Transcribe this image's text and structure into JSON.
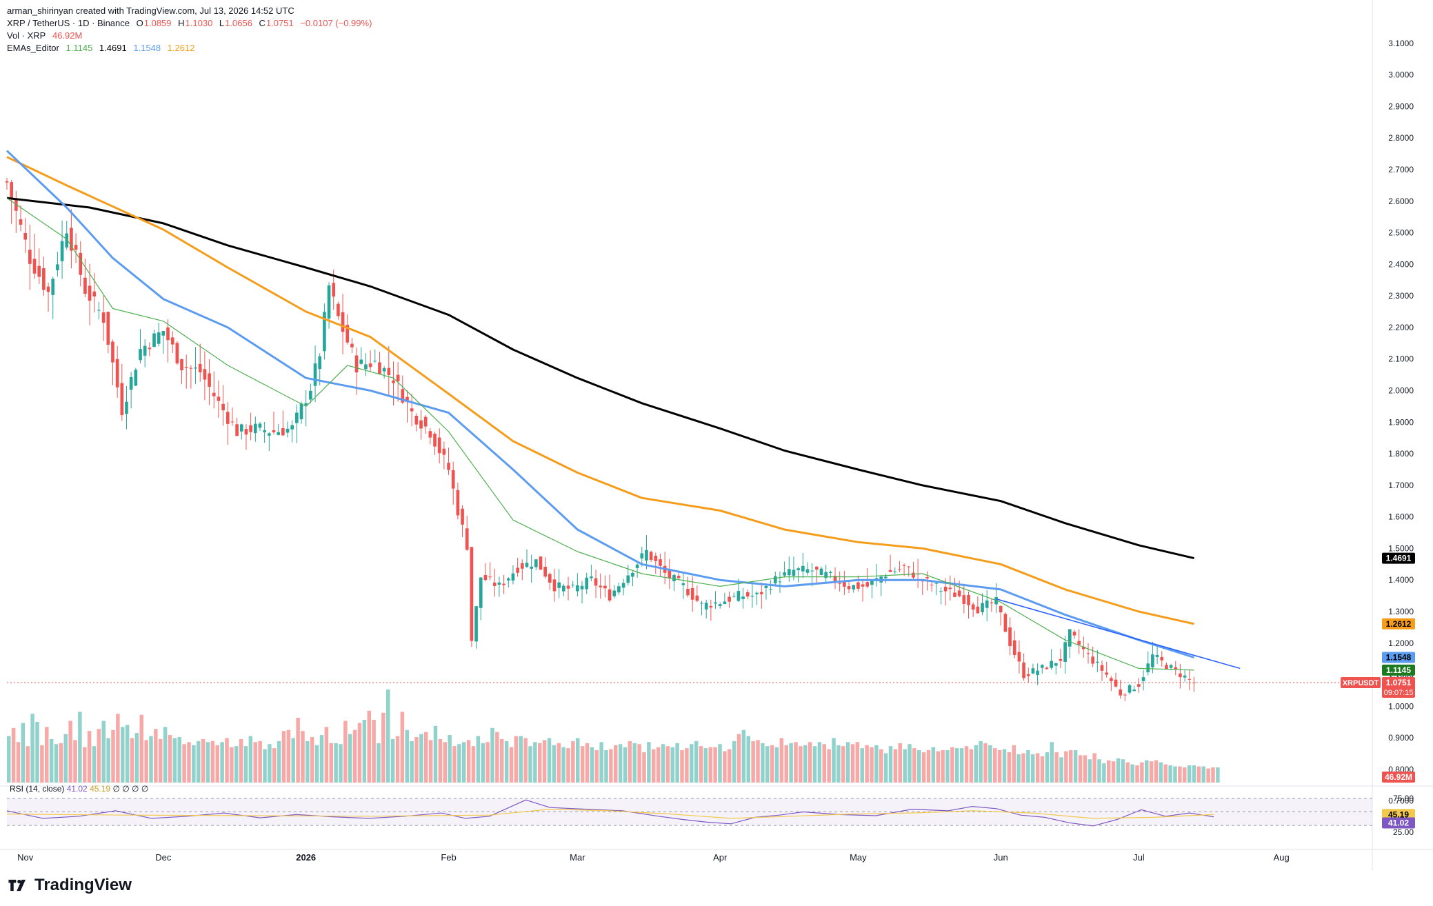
{
  "header": {
    "credit": "arman_shirinyan created with TradingView.com, Jul 13, 2026 14:52 UTC",
    "symbol_line": "XRP / TetherUS · 1D · Binance",
    "ohlc": {
      "o_label": "O",
      "o": "1.0859",
      "h_label": "H",
      "h": "1.1030",
      "l_label": "L",
      "l": "1.0656",
      "c_label": "C",
      "c": "1.0751",
      "change": "−0.0107 (−0.99%)"
    },
    "vol_label": "Vol · XRP",
    "vol_value": "46.92M",
    "ema_label": "EMAs_Editor",
    "ema_values": [
      "1.1145",
      "1.4691",
      "1.1548",
      "1.2612"
    ]
  },
  "brand": {
    "name": "TradingView"
  },
  "colors": {
    "up": "#26a69a",
    "down": "#ef5350",
    "ema20": "#4caf50",
    "ema50": "#5b9cf0",
    "ema100": "#f59c1a",
    "ema200": "#000000",
    "trendline": "#2962ff",
    "rsi": "#7e57c2",
    "rsi_ma": "#f2c94c"
  },
  "chart_data": {
    "type": "line",
    "title": "XRP / TetherUS · 1D · Binance",
    "price_axis": {
      "ticks": [
        "3.1000",
        "3.0000",
        "2.9000",
        "2.8000",
        "2.7000",
        "2.6000",
        "2.5000",
        "2.4000",
        "2.3000",
        "2.2000",
        "2.1000",
        "2.0000",
        "1.9000",
        "1.8000",
        "1.7000",
        "1.6000",
        "1.5000",
        "1.4000",
        "1.3000",
        "1.2000",
        "1.1000",
        "1.0000",
        "0.9000",
        "0.8000",
        "0.7000"
      ],
      "range": [
        0.66,
        3.15
      ]
    },
    "time_axis": {
      "ticks": [
        "Nov",
        "Dec",
        "2026",
        "Feb",
        "Mar",
        "Apr",
        "May",
        "Jun",
        "Jul",
        "Aug"
      ],
      "range": [
        "2025-10-28",
        "2026-08-20"
      ]
    },
    "series": [
      {
        "name": "EMA 200",
        "color": "#000000",
        "last": "1.4691",
        "points": [
          [
            "2025-10-28",
            2.61
          ],
          [
            "2025-11-15",
            2.58
          ],
          [
            "2025-12-01",
            2.53
          ],
          [
            "2025-12-15",
            2.46
          ],
          [
            "2026-01-01",
            2.39
          ],
          [
            "2026-01-15",
            2.33
          ],
          [
            "2026-02-01",
            2.24
          ],
          [
            "2026-02-15",
            2.13
          ],
          [
            "2026-03-01",
            2.04
          ],
          [
            "2026-03-15",
            1.96
          ],
          [
            "2026-04-01",
            1.88
          ],
          [
            "2026-04-15",
            1.81
          ],
          [
            "2026-05-01",
            1.75
          ],
          [
            "2026-05-15",
            1.7
          ],
          [
            "2026-06-01",
            1.65
          ],
          [
            "2026-06-15",
            1.58
          ],
          [
            "2026-07-01",
            1.51
          ],
          [
            "2026-07-13",
            1.4691
          ]
        ]
      },
      {
        "name": "EMA 100",
        "color": "#f59c1a",
        "last": "1.2612",
        "points": [
          [
            "2025-10-28",
            2.74
          ],
          [
            "2025-11-10",
            2.65
          ],
          [
            "2025-12-01",
            2.51
          ],
          [
            "2025-12-15",
            2.39
          ],
          [
            "2026-01-01",
            2.25
          ],
          [
            "2026-01-15",
            2.17
          ],
          [
            "2026-02-01",
            1.99
          ],
          [
            "2026-02-15",
            1.84
          ],
          [
            "2026-03-01",
            1.74
          ],
          [
            "2026-03-15",
            1.66
          ],
          [
            "2026-04-01",
            1.62
          ],
          [
            "2026-04-15",
            1.56
          ],
          [
            "2026-05-01",
            1.52
          ],
          [
            "2026-05-15",
            1.5
          ],
          [
            "2026-06-01",
            1.45
          ],
          [
            "2026-06-15",
            1.37
          ],
          [
            "2026-07-01",
            1.3
          ],
          [
            "2026-07-13",
            1.2612
          ]
        ]
      },
      {
        "name": "EMA 50",
        "color": "#5b9cf0",
        "last": "1.1548",
        "points": [
          [
            "2025-10-28",
            2.76
          ],
          [
            "2025-11-10",
            2.58
          ],
          [
            "2025-11-20",
            2.42
          ],
          [
            "2025-12-01",
            2.29
          ],
          [
            "2025-12-15",
            2.2
          ],
          [
            "2026-01-01",
            2.04
          ],
          [
            "2026-01-15",
            2.0
          ],
          [
            "2026-02-01",
            1.93
          ],
          [
            "2026-02-15",
            1.75
          ],
          [
            "2026-03-01",
            1.56
          ],
          [
            "2026-03-15",
            1.45
          ],
          [
            "2026-04-01",
            1.4
          ],
          [
            "2026-04-15",
            1.38
          ],
          [
            "2026-05-01",
            1.4
          ],
          [
            "2026-05-15",
            1.4
          ],
          [
            "2026-06-01",
            1.37
          ],
          [
            "2026-06-15",
            1.29
          ],
          [
            "2026-07-01",
            1.21
          ],
          [
            "2026-07-13",
            1.1548
          ]
        ]
      },
      {
        "name": "EMA 20",
        "color": "#4caf50",
        "last": "1.1145",
        "points": [
          [
            "2025-10-28",
            2.61
          ],
          [
            "2025-11-10",
            2.48
          ],
          [
            "2025-11-20",
            2.26
          ],
          [
            "2025-12-01",
            2.22
          ],
          [
            "2025-12-15",
            2.08
          ],
          [
            "2026-01-01",
            1.95
          ],
          [
            "2026-01-10",
            2.08
          ],
          [
            "2026-01-20",
            2.04
          ],
          [
            "2026-02-01",
            1.87
          ],
          [
            "2026-02-15",
            1.59
          ],
          [
            "2026-03-01",
            1.49
          ],
          [
            "2026-03-15",
            1.42
          ],
          [
            "2026-04-01",
            1.38
          ],
          [
            "2026-04-15",
            1.41
          ],
          [
            "2026-05-01",
            1.41
          ],
          [
            "2026-05-15",
            1.42
          ],
          [
            "2026-06-01",
            1.33
          ],
          [
            "2026-06-15",
            1.21
          ],
          [
            "2026-07-01",
            1.12
          ],
          [
            "2026-07-13",
            1.1145
          ]
        ]
      },
      {
        "name": "Trendline",
        "color": "#2962ff",
        "points": [
          [
            "2026-05-31",
            1.34
          ],
          [
            "2026-07-23",
            1.12
          ]
        ]
      }
    ],
    "price_path": [
      [
        "2025-10-28",
        2.66
      ],
      [
        "2025-11-02",
        2.42
      ],
      [
        "2025-11-06",
        2.31
      ],
      [
        "2025-11-10",
        2.52
      ],
      [
        "2025-11-14",
        2.32
      ],
      [
        "2025-11-18",
        2.23
      ],
      [
        "2025-11-22",
        1.94
      ],
      [
        "2025-11-26",
        2.13
      ],
      [
        "2025-12-01",
        2.19
      ],
      [
        "2025-12-05",
        2.08
      ],
      [
        "2025-12-09",
        2.06
      ],
      [
        "2025-12-13",
        1.96
      ],
      [
        "2025-12-17",
        1.87
      ],
      [
        "2025-12-21",
        1.88
      ],
      [
        "2025-12-25",
        1.87
      ],
      [
        "2025-12-29",
        1.88
      ],
      [
        "2026-01-02",
        2.01
      ],
      [
        "2026-01-04",
        2.12
      ],
      [
        "2026-01-06",
        2.33
      ],
      [
        "2026-01-08",
        2.23
      ],
      [
        "2026-01-12",
        2.08
      ],
      [
        "2026-01-16",
        2.09
      ],
      [
        "2026-01-20",
        2.04
      ],
      [
        "2026-01-24",
        1.93
      ],
      [
        "2026-01-28",
        1.87
      ],
      [
        "2026-02-01",
        1.75
      ],
      [
        "2026-02-03",
        1.62
      ],
      [
        "2026-02-05",
        1.51
      ],
      [
        "2026-02-06",
        1.21
      ],
      [
        "2026-02-08",
        1.41
      ],
      [
        "2026-02-12",
        1.38
      ],
      [
        "2026-02-16",
        1.44
      ],
      [
        "2026-02-20",
        1.46
      ],
      [
        "2026-02-24",
        1.38
      ],
      [
        "2026-02-28",
        1.37
      ],
      [
        "2026-03-04",
        1.4
      ],
      [
        "2026-03-08",
        1.35
      ],
      [
        "2026-03-12",
        1.42
      ],
      [
        "2026-03-16",
        1.49
      ],
      [
        "2026-03-20",
        1.42
      ],
      [
        "2026-03-24",
        1.38
      ],
      [
        "2026-03-28",
        1.32
      ],
      [
        "2026-04-01",
        1.33
      ],
      [
        "2026-04-05",
        1.35
      ],
      [
        "2026-04-09",
        1.35
      ],
      [
        "2026-04-13",
        1.4
      ],
      [
        "2026-04-17",
        1.43
      ],
      [
        "2026-04-21",
        1.43
      ],
      [
        "2026-04-25",
        1.41
      ],
      [
        "2026-04-29",
        1.38
      ],
      [
        "2026-05-03",
        1.38
      ],
      [
        "2026-05-07",
        1.42
      ],
      [
        "2026-05-11",
        1.44
      ],
      [
        "2026-05-15",
        1.4
      ],
      [
        "2026-05-19",
        1.37
      ],
      [
        "2026-05-23",
        1.35
      ],
      [
        "2026-05-27",
        1.31
      ],
      [
        "2026-05-31",
        1.33
      ],
      [
        "2026-06-03",
        1.2
      ],
      [
        "2026-06-06",
        1.1
      ],
      [
        "2026-06-10",
        1.12
      ],
      [
        "2026-06-14",
        1.15
      ],
      [
        "2026-06-16",
        1.23
      ],
      [
        "2026-06-20",
        1.16
      ],
      [
        "2026-06-24",
        1.1
      ],
      [
        "2026-06-27",
        1.04
      ],
      [
        "2026-07-01",
        1.07
      ],
      [
        "2026-07-04",
        1.16
      ],
      [
        "2026-07-08",
        1.12
      ],
      [
        "2026-07-13",
        1.0751
      ]
    ],
    "last_price": {
      "label": "XRPUSDT",
      "value": "1.0751",
      "countdown": "09:07:15"
    },
    "volume": {
      "last": "46.92M",
      "values": [
        46,
        54,
        40,
        59,
        36,
        68,
        60,
        37,
        55,
        43,
        38,
        39,
        48,
        61,
        42,
        70,
        35,
        51,
        36,
        53,
        61,
        44,
        52,
        68,
        55,
        57,
        44,
        49,
        67,
        42,
        46,
        53,
        43,
        55,
        47,
        44,
        45,
        38,
        40,
        37,
        41,
        43,
        40,
        41,
        37,
        40,
        44,
        35,
        36,
        43,
        36,
        46,
        40,
        41,
        33,
        38,
        34,
        41,
        51,
        52,
        44,
        64,
        51,
        41,
        45,
        37,
        47,
        55,
        39,
        39,
        38,
        61,
        48,
        52,
        59,
        62,
        71,
        62,
        39,
        69,
        92,
        43,
        46,
        70,
        52,
        41,
        45,
        48,
        50,
        42,
        56,
        43,
        40,
        47,
        36,
        38,
        40,
        42,
        36,
        46,
        39,
        40,
        54,
        50,
        43,
        41,
        35,
        46,
        46,
        44,
        36,
        40,
        39,
        42,
        44,
        37,
        39,
        35,
        34,
        41,
        44,
        36,
        39,
        35,
        32,
        40,
        32,
        33,
        37,
        38,
        35,
        41,
        39,
        38,
        30,
        40,
        33,
        35,
        38,
        36,
        35,
        39,
        32,
        34,
        38,
        41,
        36,
        34,
        35,
        35,
        38,
        31,
        33,
        41,
        48,
        52,
        46,
        41,
        42,
        39,
        36,
        37,
        35,
        44,
        37,
        39,
        40,
        36,
        37,
        40,
        36,
        40,
        38,
        33,
        44,
        37,
        36,
        40,
        38,
        40,
        34,
        37,
        35,
        37,
        33,
        29,
        36,
        33,
        39,
        33,
        38,
        34,
        32,
        30,
        32,
        35,
        31,
        32,
        32,
        35,
        34,
        34,
        36,
        33,
        37,
        41,
        39,
        37,
        34,
        32,
        33,
        30,
        37,
        28,
        29,
        32,
        28,
        29,
        26,
        30,
        40,
        30,
        25,
        31,
        32,
        32,
        27,
        27,
        23,
        29,
        23,
        19,
        22,
        21,
        24,
        23,
        20,
        18,
        17,
        20,
        22,
        21,
        22,
        20,
        18,
        17,
        16,
        16,
        15,
        17,
        17,
        16,
        16,
        14,
        15,
        15
      ]
    },
    "rsi": {
      "label": "RSI (14, close)",
      "value": "41.02",
      "ma": "45.19",
      "extra_values": [
        "∅",
        "∅",
        "∅",
        "∅"
      ],
      "levels": [
        "75.00",
        "25.00"
      ],
      "range": [
        15,
        85
      ],
      "points": [
        [
          0,
          52
        ],
        [
          0.03,
          38
        ],
        [
          0.06,
          42
        ],
        [
          0.09,
          52
        ],
        [
          0.12,
          38
        ],
        [
          0.15,
          42
        ],
        [
          0.18,
          48
        ],
        [
          0.21,
          39
        ],
        [
          0.24,
          45
        ],
        [
          0.27,
          41
        ],
        [
          0.3,
          38
        ],
        [
          0.33,
          42
        ],
        [
          0.36,
          48
        ],
        [
          0.38,
          38
        ],
        [
          0.4,
          42
        ],
        [
          0.43,
          72
        ],
        [
          0.45,
          58
        ],
        [
          0.48,
          55
        ],
        [
          0.51,
          52
        ],
        [
          0.54,
          42
        ],
        [
          0.56,
          36
        ],
        [
          0.58,
          31
        ],
        [
          0.6,
          28
        ],
        [
          0.62,
          40
        ],
        [
          0.64,
          44
        ],
        [
          0.66,
          50
        ],
        [
          0.69,
          45
        ],
        [
          0.72,
          43
        ],
        [
          0.75,
          55
        ],
        [
          0.78,
          52
        ],
        [
          0.8,
          60
        ],
        [
          0.82,
          56
        ],
        [
          0.84,
          44
        ],
        [
          0.86,
          40
        ],
        [
          0.88,
          30
        ],
        [
          0.9,
          24
        ],
        [
          0.92,
          36
        ],
        [
          0.94,
          54
        ],
        [
          0.96,
          42
        ],
        [
          0.98,
          48
        ],
        [
          1.0,
          41
        ]
      ],
      "ma_points": [
        [
          0,
          46
        ],
        [
          0.1,
          44
        ],
        [
          0.2,
          43
        ],
        [
          0.3,
          42
        ],
        [
          0.4,
          44
        ],
        [
          0.45,
          55
        ],
        [
          0.5,
          52
        ],
        [
          0.55,
          46
        ],
        [
          0.6,
          38
        ],
        [
          0.65,
          42
        ],
        [
          0.7,
          46
        ],
        [
          0.75,
          48
        ],
        [
          0.8,
          52
        ],
        [
          0.85,
          48
        ],
        [
          0.9,
          38
        ],
        [
          0.95,
          40
        ],
        [
          1.0,
          45
        ]
      ]
    }
  }
}
